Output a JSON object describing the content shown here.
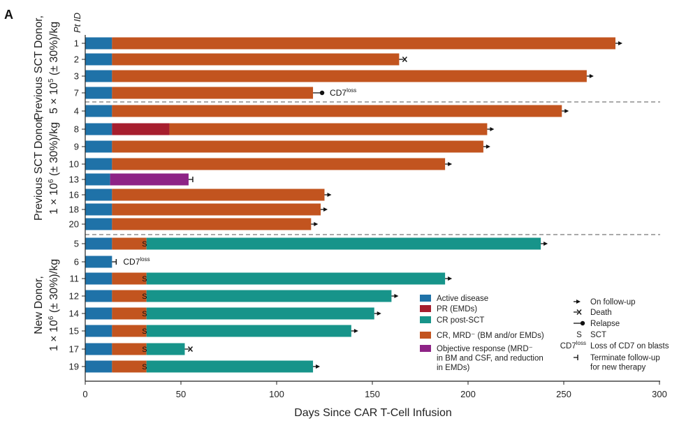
{
  "panel_label": "A",
  "chart_data": {
    "type": "bar",
    "orientation": "horizontal-stacked-swimmer",
    "xlabel": "Days Since CAR T-Cell Infusion",
    "ylabel": "Pt ID",
    "xlim": [
      0,
      300
    ],
    "x_ticks": [
      0,
      50,
      100,
      150,
      200,
      250,
      300
    ],
    "grid": false,
    "legend_placement": "bottom-right",
    "colors": {
      "active": "#1f72a8",
      "pr": "#a61e2e",
      "crpost": "#17948a",
      "cr": "#c2541f",
      "obj": "#8e2386",
      "separator": "#777777"
    },
    "groups": [
      {
        "label_line1": "Previous SCT Donor,",
        "label_line2": "5 × 10",
        "label_exp": "5",
        "label_tail": " (± 30%)/kg",
        "patients": [
          "1",
          "2",
          "3",
          "7"
        ]
      },
      {
        "label_line1": "Previous SCT Donor,",
        "label_line2": "1 × 10",
        "label_exp": "6",
        "label_tail": " (± 30%)/kg",
        "patients": [
          "4",
          "8",
          "9",
          "10",
          "13",
          "16",
          "18",
          "20"
        ]
      },
      {
        "label_line1": "New Donor,",
        "label_line2": "1 × 10",
        "label_exp": "6",
        "label_tail": " (± 30%)/kg",
        "patients": [
          "5",
          "6",
          "11",
          "12",
          "14",
          "15",
          "17",
          "19"
        ]
      }
    ],
    "patients": [
      {
        "id": "1",
        "segments": [
          {
            "s": "active",
            "start": 0,
            "end": 14
          },
          {
            "s": "cr",
            "start": 14,
            "end": 277
          }
        ],
        "end_marker": "follow-up"
      },
      {
        "id": "2",
        "segments": [
          {
            "s": "active",
            "start": 0,
            "end": 14
          },
          {
            "s": "cr",
            "start": 14,
            "end": 164
          }
        ],
        "end_marker": "death"
      },
      {
        "id": "3",
        "segments": [
          {
            "s": "active",
            "start": 0,
            "end": 14
          },
          {
            "s": "cr",
            "start": 14,
            "end": 262
          }
        ],
        "end_marker": "follow-up"
      },
      {
        "id": "7",
        "segments": [
          {
            "s": "active",
            "start": 0,
            "end": 14
          },
          {
            "s": "cr",
            "start": 14,
            "end": 119
          }
        ],
        "end_marker": "relapse",
        "annotation": "CD7",
        "annotation_sup": "loss"
      },
      {
        "id": "4",
        "segments": [
          {
            "s": "active",
            "start": 0,
            "end": 14
          },
          {
            "s": "cr",
            "start": 14,
            "end": 249
          }
        ],
        "end_marker": "follow-up"
      },
      {
        "id": "8",
        "segments": [
          {
            "s": "active",
            "start": 0,
            "end": 14
          },
          {
            "s": "pr",
            "start": 14,
            "end": 44
          },
          {
            "s": "cr",
            "start": 44,
            "end": 210
          }
        ],
        "end_marker": "follow-up"
      },
      {
        "id": "9",
        "segments": [
          {
            "s": "active",
            "start": 0,
            "end": 14
          },
          {
            "s": "cr",
            "start": 14,
            "end": 208
          }
        ],
        "end_marker": "follow-up"
      },
      {
        "id": "10",
        "segments": [
          {
            "s": "active",
            "start": 0,
            "end": 14
          },
          {
            "s": "cr",
            "start": 14,
            "end": 188
          }
        ],
        "end_marker": "follow-up"
      },
      {
        "id": "13",
        "segments": [
          {
            "s": "active",
            "start": 0,
            "end": 13
          },
          {
            "s": "obj",
            "start": 13,
            "end": 54
          }
        ],
        "end_marker": "terminate"
      },
      {
        "id": "16",
        "segments": [
          {
            "s": "active",
            "start": 0,
            "end": 14
          },
          {
            "s": "cr",
            "start": 14,
            "end": 125
          }
        ],
        "end_marker": "follow-up"
      },
      {
        "id": "18",
        "segments": [
          {
            "s": "active",
            "start": 0,
            "end": 14
          },
          {
            "s": "cr",
            "start": 14,
            "end": 123
          }
        ],
        "end_marker": "follow-up"
      },
      {
        "id": "20",
        "segments": [
          {
            "s": "active",
            "start": 0,
            "end": 14
          },
          {
            "s": "cr",
            "start": 14,
            "end": 118
          }
        ],
        "end_marker": "follow-up"
      },
      {
        "id": "5",
        "segments": [
          {
            "s": "active",
            "start": 0,
            "end": 14
          },
          {
            "s": "cr",
            "start": 14,
            "end": 32
          },
          {
            "s": "crpost",
            "start": 32,
            "end": 238
          }
        ],
        "end_marker": "follow-up",
        "sct_day": 31
      },
      {
        "id": "6",
        "segments": [
          {
            "s": "active",
            "start": 0,
            "end": 14
          }
        ],
        "end_marker": "terminate",
        "annotation": "CD7",
        "annotation_sup": "loss"
      },
      {
        "id": "11",
        "segments": [
          {
            "s": "active",
            "start": 0,
            "end": 14
          },
          {
            "s": "cr",
            "start": 14,
            "end": 32
          },
          {
            "s": "crpost",
            "start": 32,
            "end": 188
          }
        ],
        "end_marker": "follow-up",
        "sct_day": 31
      },
      {
        "id": "12",
        "segments": [
          {
            "s": "active",
            "start": 0,
            "end": 14
          },
          {
            "s": "cr",
            "start": 14,
            "end": 32
          },
          {
            "s": "crpost",
            "start": 32,
            "end": 160
          }
        ],
        "end_marker": "follow-up",
        "sct_day": 31
      },
      {
        "id": "14",
        "segments": [
          {
            "s": "active",
            "start": 0,
            "end": 14
          },
          {
            "s": "cr",
            "start": 14,
            "end": 32
          },
          {
            "s": "crpost",
            "start": 32,
            "end": 151
          }
        ],
        "end_marker": "follow-up",
        "sct_day": 31
      },
      {
        "id": "15",
        "segments": [
          {
            "s": "active",
            "start": 0,
            "end": 14
          },
          {
            "s": "cr",
            "start": 14,
            "end": 32
          },
          {
            "s": "crpost",
            "start": 32,
            "end": 139
          }
        ],
        "end_marker": "follow-up",
        "sct_day": 31
      },
      {
        "id": "17",
        "segments": [
          {
            "s": "active",
            "start": 0,
            "end": 14
          },
          {
            "s": "cr",
            "start": 14,
            "end": 32
          },
          {
            "s": "crpost",
            "start": 32,
            "end": 52
          }
        ],
        "end_marker": "death",
        "sct_day": 31
      },
      {
        "id": "19",
        "segments": [
          {
            "s": "active",
            "start": 0,
            "end": 14
          },
          {
            "s": "cr",
            "start": 14,
            "end": 32
          },
          {
            "s": "crpost",
            "start": 32,
            "end": 119
          }
        ],
        "end_marker": "follow-up",
        "sct_day": 31
      }
    ],
    "legend_status": [
      {
        "key": "active",
        "lines": [
          "Active disease"
        ]
      },
      {
        "key": "pr",
        "lines": [
          "PR (EMDs)"
        ]
      },
      {
        "key": "crpost",
        "lines": [
          "CR post-SCT"
        ]
      },
      {
        "key": "cr",
        "lines": [
          "CR, MRD⁻ (BM and/or EMDs)"
        ]
      },
      {
        "key": "obj",
        "lines": [
          "Objective response (MRD⁻",
          "in BM and CSF, and reduction",
          "in EMDs)"
        ]
      }
    ],
    "legend_markers": [
      {
        "marker": "follow-up",
        "lines": [
          "On follow-up"
        ]
      },
      {
        "marker": "death",
        "lines": [
          "Death"
        ]
      },
      {
        "marker": "relapse",
        "lines": [
          "Relapse"
        ]
      },
      {
        "marker": "sct",
        "symbol": "S",
        "lines": [
          "SCT"
        ]
      },
      {
        "marker": "cd7",
        "symbol": "CD7",
        "symbol_sup": "loss",
        "lines": [
          "Loss of CD7 on blasts"
        ]
      },
      {
        "marker": "terminate",
        "lines": [
          "Terminate follow-up",
          "for new therapy"
        ]
      }
    ],
    "sct_symbol": "S"
  }
}
